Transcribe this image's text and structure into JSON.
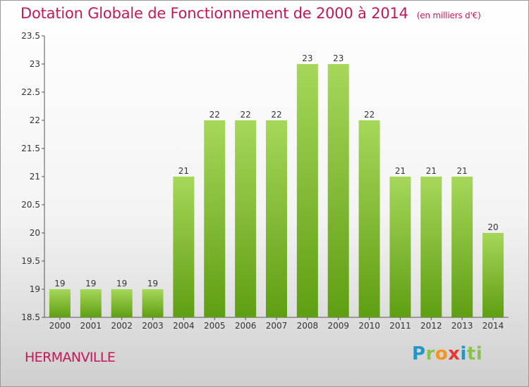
{
  "title": "Dotation Globale de Fonctionnement de 2000 à 2014",
  "unit": "(en milliers d'€)",
  "commune": "HERMANVILLE",
  "logo_letters": [
    "P",
    "r",
    "o",
    "x",
    "i",
    "t",
    "i"
  ],
  "colors": {
    "title": "#c2185b",
    "bar_top": "#a6d75a",
    "bar_bottom": "#5f9e12"
  },
  "chart_data": {
    "type": "bar",
    "title": "Dotation Globale de Fonctionnement de 2000 à 2014",
    "subtitle": "(en milliers d'€)",
    "xlabel": "",
    "ylabel": "",
    "categories": [
      "2000",
      "2001",
      "2002",
      "2003",
      "2004",
      "2005",
      "2006",
      "2007",
      "2008",
      "2009",
      "2010",
      "2011",
      "2012",
      "2013",
      "2014"
    ],
    "values": [
      19,
      19,
      19,
      19,
      21,
      22,
      22,
      22,
      23,
      23,
      22,
      21,
      21,
      21,
      20
    ],
    "data_labels": [
      "19",
      "19",
      "19",
      "19",
      "21",
      "22",
      "22",
      "22",
      "23",
      "23",
      "22",
      "21",
      "21",
      "21",
      "20"
    ],
    "ylim": [
      18.5,
      23.5
    ],
    "yticks": [
      18.5,
      19,
      19.5,
      20,
      20.5,
      21,
      21.5,
      22,
      22.5,
      23,
      23.5
    ],
    "ytick_labels": [
      "18.5",
      "19",
      "19.5",
      "20",
      "20.5",
      "21",
      "21.5",
      "22",
      "22.5",
      "23",
      "23.5"
    ],
    "grid": false,
    "legend": "none"
  }
}
